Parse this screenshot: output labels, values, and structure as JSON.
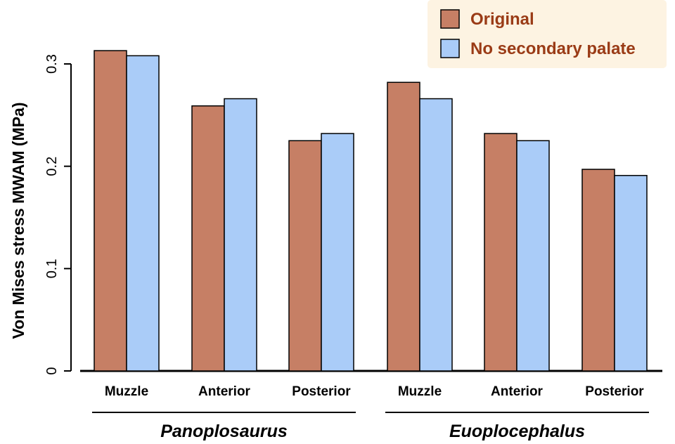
{
  "chart_data": {
    "type": "bar",
    "ylabel": "Von Mises stress MWAM (MPa)",
    "ylim": [
      0,
      0.3
    ],
    "yticks": [
      0,
      0.1,
      0.2,
      0.3
    ],
    "ytick_labels": [
      "0",
      "0.1",
      "0.2",
      "0.3"
    ],
    "categories": [
      "Muzzle",
      "Anterior",
      "Posterior",
      "Muzzle",
      "Anterior",
      "Posterior"
    ],
    "groups": [
      {
        "label": "Panoplosaurus",
        "category_indices": [
          0,
          1,
          2
        ]
      },
      {
        "label": "Euoplocephalus",
        "category_indices": [
          3,
          4,
          5
        ]
      }
    ],
    "series": [
      {
        "name": "Original",
        "color": "#c67f65",
        "values": [
          0.313,
          0.259,
          0.225,
          0.282,
          0.232,
          0.197
        ]
      },
      {
        "name": "No secondary palate",
        "color": "#aaccf8",
        "values": [
          0.308,
          0.266,
          0.232,
          0.266,
          0.225,
          0.191
        ]
      }
    ],
    "legend_position": "top-right",
    "legend_background": "#fdf3e2",
    "legend_text_color": "#9a3b16",
    "grid": false
  }
}
